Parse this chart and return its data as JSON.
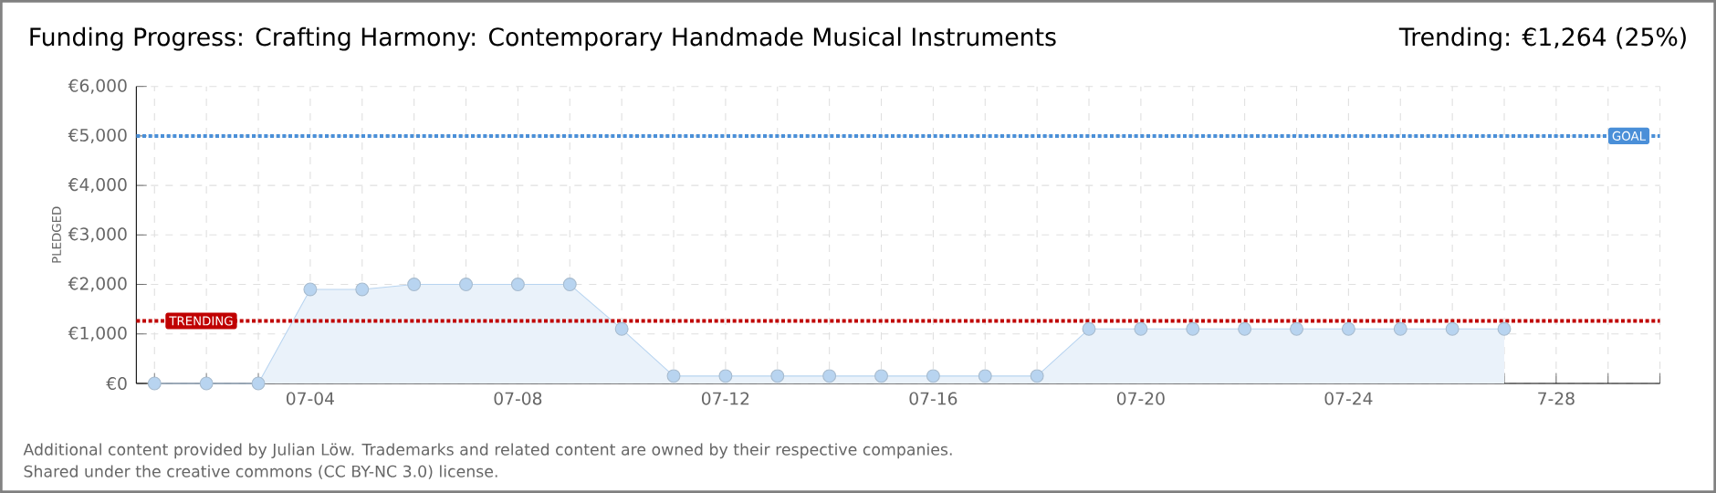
{
  "chart_data": {
    "type": "area",
    "title": "Funding Progress: Crafting Harmony: Contemporary Handmade Musical Instruments",
    "subtitle": "Trending:  €1,264 (25%)",
    "ylabel": "PLEDGED",
    "categories": [
      null,
      null,
      null,
      "07-04",
      null,
      null,
      null,
      "07-08",
      null,
      null,
      null,
      "07-12",
      null,
      null,
      null,
      "07-16",
      null,
      null,
      null,
      "07-20",
      null,
      null,
      null,
      "07-24",
      null,
      null,
      null,
      "7-28",
      null,
      null
    ],
    "series": [
      {
        "color": "#b8d4f0",
        "values": [
          0,
          0,
          0,
          1900,
          1900,
          2000,
          2000,
          2000,
          2000,
          1100,
          150,
          150,
          150,
          150,
          150,
          150,
          150,
          150,
          1100,
          1100,
          1100,
          1100,
          1100,
          1100,
          1100,
          1100,
          1100,
          null,
          null,
          null
        ]
      }
    ],
    "ylim": [
      0,
      6000
    ],
    "yticks": [
      {
        "value": 0,
        "label": "€0"
      },
      {
        "value": 1000,
        "label": "€1,000"
      },
      {
        "value": 2000,
        "label": "€2,000"
      },
      {
        "value": 3000,
        "label": "€3,000"
      },
      {
        "value": 4000,
        "label": "€4,000"
      },
      {
        "value": 5000,
        "label": "€5,000"
      },
      {
        "value": 6000,
        "label": "€6,000"
      }
    ],
    "ref_lines": [
      {
        "axis": "y",
        "value": 5000,
        "label": "GOAL",
        "color": "#4a8fd8",
        "line_style": "dotted"
      },
      {
        "axis": "y",
        "value": 1264,
        "label": "TRENDING",
        "color": "#c00000",
        "line_style": "dotted"
      }
    ],
    "grid": true,
    "marker": "circle",
    "line_style": "solid",
    "annotations": [
      "Additional content provided by Julian Löw. Trademarks and related content are owned by their respective companies.",
      "Shared under the creative commons (CC BY-NC 3.0) license."
    ]
  }
}
